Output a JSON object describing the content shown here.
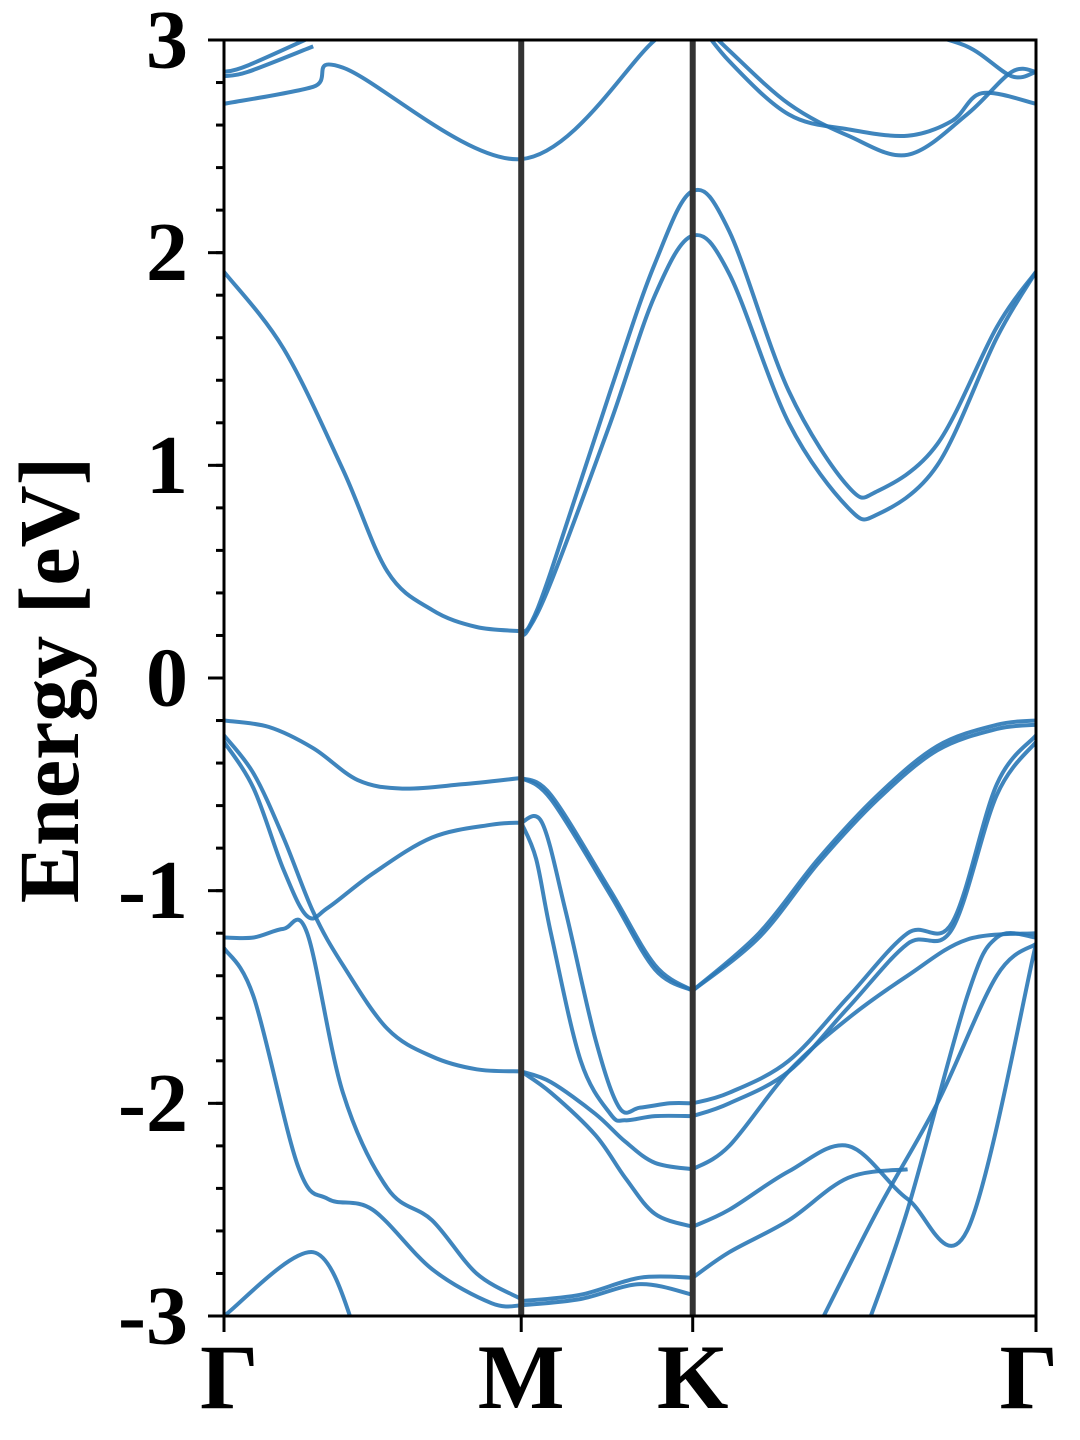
{
  "chart_data": {
    "type": "line",
    "title": "",
    "xlabel": "",
    "ylabel": "Energy [eV]",
    "ylim": [
      -3,
      3
    ],
    "y_ticks": [
      -3,
      -2,
      -1,
      0,
      1,
      2,
      3
    ],
    "y_tick_labels": [
      "-3",
      "-2",
      "-1",
      "0",
      "1",
      "2",
      "3"
    ],
    "y_minor_step": 0.2,
    "k_path": [
      {
        "label": "Γ",
        "position": 0.0
      },
      {
        "label": "M",
        "position": 1.0
      },
      {
        "label": "K",
        "position": 1.577
      },
      {
        "label": "Γ",
        "position": 2.732
      }
    ],
    "high_symmetry_lines": [
      "M",
      "K"
    ],
    "series_color": "#2a78b6",
    "vline_color": "#333333",
    "grid": false,
    "legend": "none",
    "series": [
      {
        "x": [
          0,
          0.3,
          0.4,
          1.0,
          1.45,
          1.577
        ],
        "values": [
          2.7,
          2.78,
          2.87,
          2.44,
          3.0,
          3.12
        ]
      },
      {
        "x": [
          0,
          0.08,
          0.3
        ],
        "values": [
          2.83,
          2.85,
          2.97
        ]
      },
      {
        "x": [
          0,
          0.08,
          0.35
        ],
        "values": [
          2.85,
          2.88,
          3.05
        ]
      },
      {
        "x": [
          0,
          0.2,
          0.4,
          0.55,
          0.7,
          0.85,
          1.0
        ],
        "values": [
          1.91,
          1.55,
          0.98,
          0.5,
          0.32,
          0.24,
          0.22
        ]
      },
      {
        "x": [
          1.0,
          1.02,
          1.1,
          1.3,
          1.45,
          1.577,
          1.7,
          1.9,
          2.1,
          2.2,
          2.4,
          2.6,
          2.732
        ],
        "values": [
          0.22,
          0.22,
          0.45,
          1.2,
          1.8,
          2.08,
          1.9,
          1.2,
          0.8,
          0.77,
          1.0,
          1.6,
          1.91
        ]
      },
      {
        "x": [
          1.0,
          1.03,
          1.1,
          1.3,
          1.45,
          1.577,
          1.7,
          1.9,
          2.1,
          2.2,
          2.4,
          2.6,
          2.732
        ],
        "values": [
          0.22,
          0.25,
          0.5,
          1.35,
          1.95,
          2.29,
          2.1,
          1.35,
          0.9,
          0.88,
          1.1,
          1.65,
          1.91
        ]
      },
      {
        "x": [
          1.577,
          1.7,
          1.9,
          2.1,
          2.3,
          2.45,
          2.55,
          2.732
        ],
        "values": [
          3.12,
          2.9,
          2.65,
          2.58,
          2.55,
          2.62,
          2.75,
          2.7
        ]
      },
      {
        "x": [
          1.577,
          1.7,
          1.9,
          2.1,
          2.3,
          2.5,
          2.65,
          2.732
        ],
        "values": [
          3.12,
          2.95,
          2.7,
          2.55,
          2.46,
          2.65,
          2.85,
          2.85
        ]
      },
      {
        "x": [
          2.3,
          2.5,
          2.65,
          2.732
        ],
        "values": [
          3.05,
          2.97,
          2.83,
          2.85
        ]
      },
      {
        "x": [
          0,
          0.15,
          0.3,
          0.45,
          0.6,
          0.8,
          1.0
        ],
        "values": [
          -0.2,
          -0.23,
          -0.33,
          -0.48,
          -0.52,
          -0.5,
          -0.47
        ]
      },
      {
        "x": [
          1.0,
          1.1,
          1.3,
          1.45,
          1.577
        ],
        "values": [
          -0.47,
          -0.55,
          -1.0,
          -1.35,
          -1.47
        ]
      },
      {
        "x": [
          1.577,
          1.8,
          2.0,
          2.2,
          2.4,
          2.6,
          2.732
        ],
        "values": [
          -1.47,
          -1.2,
          -0.85,
          -0.55,
          -0.32,
          -0.22,
          -0.2
        ]
      },
      {
        "x": [
          1.0,
          1.1,
          1.3,
          1.45,
          1.577
        ],
        "values": [
          -0.47,
          -0.57,
          -1.02,
          -1.37,
          -1.47
        ]
      },
      {
        "x": [
          1.577,
          1.8,
          2.0,
          2.2,
          2.4,
          2.6,
          2.732
        ],
        "values": [
          -1.47,
          -1.22,
          -0.87,
          -0.57,
          -0.34,
          -0.24,
          -0.22
        ]
      },
      {
        "x": [
          0,
          0.1,
          0.2,
          0.3,
          0.4,
          0.55,
          0.7,
          0.85,
          1.0
        ],
        "values": [
          -0.27,
          -0.45,
          -0.75,
          -1.1,
          -1.35,
          -1.65,
          -1.78,
          -1.84,
          -1.85
        ]
      },
      {
        "x": [
          0,
          0.1,
          0.2,
          0.28,
          0.35,
          0.5,
          0.7,
          0.9,
          1.0
        ],
        "values": [
          -0.3,
          -0.52,
          -0.9,
          -1.12,
          -1.08,
          -0.92,
          -0.75,
          -0.69,
          -0.68
        ]
      },
      {
        "x": [
          1.0,
          1.05,
          1.1,
          1.2,
          1.3,
          1.35,
          1.45,
          1.577
        ],
        "values": [
          -0.68,
          -0.85,
          -1.2,
          -1.8,
          -2.05,
          -2.08,
          -2.06,
          -2.06
        ]
      },
      {
        "x": [
          1.0,
          1.07,
          1.15,
          1.25,
          1.33,
          1.4,
          1.5,
          1.577
        ],
        "values": [
          -0.68,
          -0.68,
          -1.1,
          -1.7,
          -2.02,
          -2.02,
          -2.0,
          -2.0
        ]
      },
      {
        "x": [
          1.577,
          1.7,
          1.9,
          2.1,
          2.3,
          2.45,
          2.6,
          2.732
        ],
        "values": [
          -2.0,
          -1.95,
          -1.8,
          -1.5,
          -1.2,
          -1.15,
          -0.5,
          -0.27
        ]
      },
      {
        "x": [
          1.577,
          1.7,
          1.9,
          2.1,
          2.3,
          2.45,
          2.6,
          2.732
        ],
        "values": [
          -2.06,
          -2.0,
          -1.85,
          -1.55,
          -1.25,
          -1.18,
          -0.55,
          -0.3
        ]
      },
      {
        "x": [
          0,
          0.1,
          0.25,
          0.35,
          0.5,
          0.7,
          0.9,
          1.0
        ],
        "values": [
          -1.27,
          -1.5,
          -2.3,
          -2.45,
          -2.5,
          -2.78,
          -2.94,
          -2.95
        ]
      },
      {
        "x": [
          0,
          0.1,
          0.2,
          0.28,
          0.4,
          0.55,
          0.7,
          0.85,
          1.0
        ],
        "values": [
          -1.22,
          -1.22,
          -1.18,
          -1.2,
          -1.95,
          -2.4,
          -2.55,
          -2.8,
          -2.92
        ]
      },
      {
        "x": [
          1.0,
          1.1,
          1.25,
          1.35,
          1.45,
          1.577
        ],
        "values": [
          -1.85,
          -1.9,
          -2.05,
          -2.18,
          -2.28,
          -2.31
        ]
      },
      {
        "x": [
          1.577,
          1.7,
          1.9,
          2.1,
          2.3,
          2.5,
          2.732
        ],
        "values": [
          -2.31,
          -2.2,
          -1.85,
          -1.6,
          -1.4,
          -1.23,
          -1.2
        ]
      },
      {
        "x": [
          1.0,
          1.1,
          1.25,
          1.35,
          1.45,
          1.577
        ],
        "values": [
          -1.85,
          -1.95,
          -2.15,
          -2.35,
          -2.52,
          -2.58
        ]
      },
      {
        "x": [
          1.577,
          1.7,
          1.9,
          2.1,
          2.3,
          2.5,
          2.732
        ],
        "values": [
          -2.58,
          -2.5,
          -2.32,
          -2.2,
          -2.45,
          -2.6,
          -1.25
        ]
      },
      {
        "x": [
          1.0,
          1.2,
          1.4,
          1.577
        ],
        "values": [
          -2.93,
          -2.9,
          -2.82,
          -2.82
        ]
      },
      {
        "x": [
          1.577,
          1.7,
          1.9,
          2.1,
          2.3
        ],
        "values": [
          -2.82,
          -2.7,
          -2.55,
          -2.35,
          -2.31
        ]
      },
      {
        "x": [
          1.0,
          1.2,
          1.4,
          1.577
        ],
        "values": [
          -2.95,
          -2.92,
          -2.85,
          -2.9
        ]
      },
      {
        "x": [
          0,
          0.3,
          0.45
        ],
        "values": [
          -3.0,
          -2.7,
          -3.1
        ]
      },
      {
        "x": [
          2.0,
          2.2,
          2.4,
          2.6,
          2.732
        ],
        "values": [
          -3.05,
          -2.5,
          -2.0,
          -1.4,
          -1.25
        ]
      },
      {
        "x": [
          2.15,
          2.3,
          2.5,
          2.6,
          2.732
        ],
        "values": [
          -3.1,
          -2.5,
          -1.5,
          -1.22,
          -1.22
        ]
      }
    ]
  }
}
